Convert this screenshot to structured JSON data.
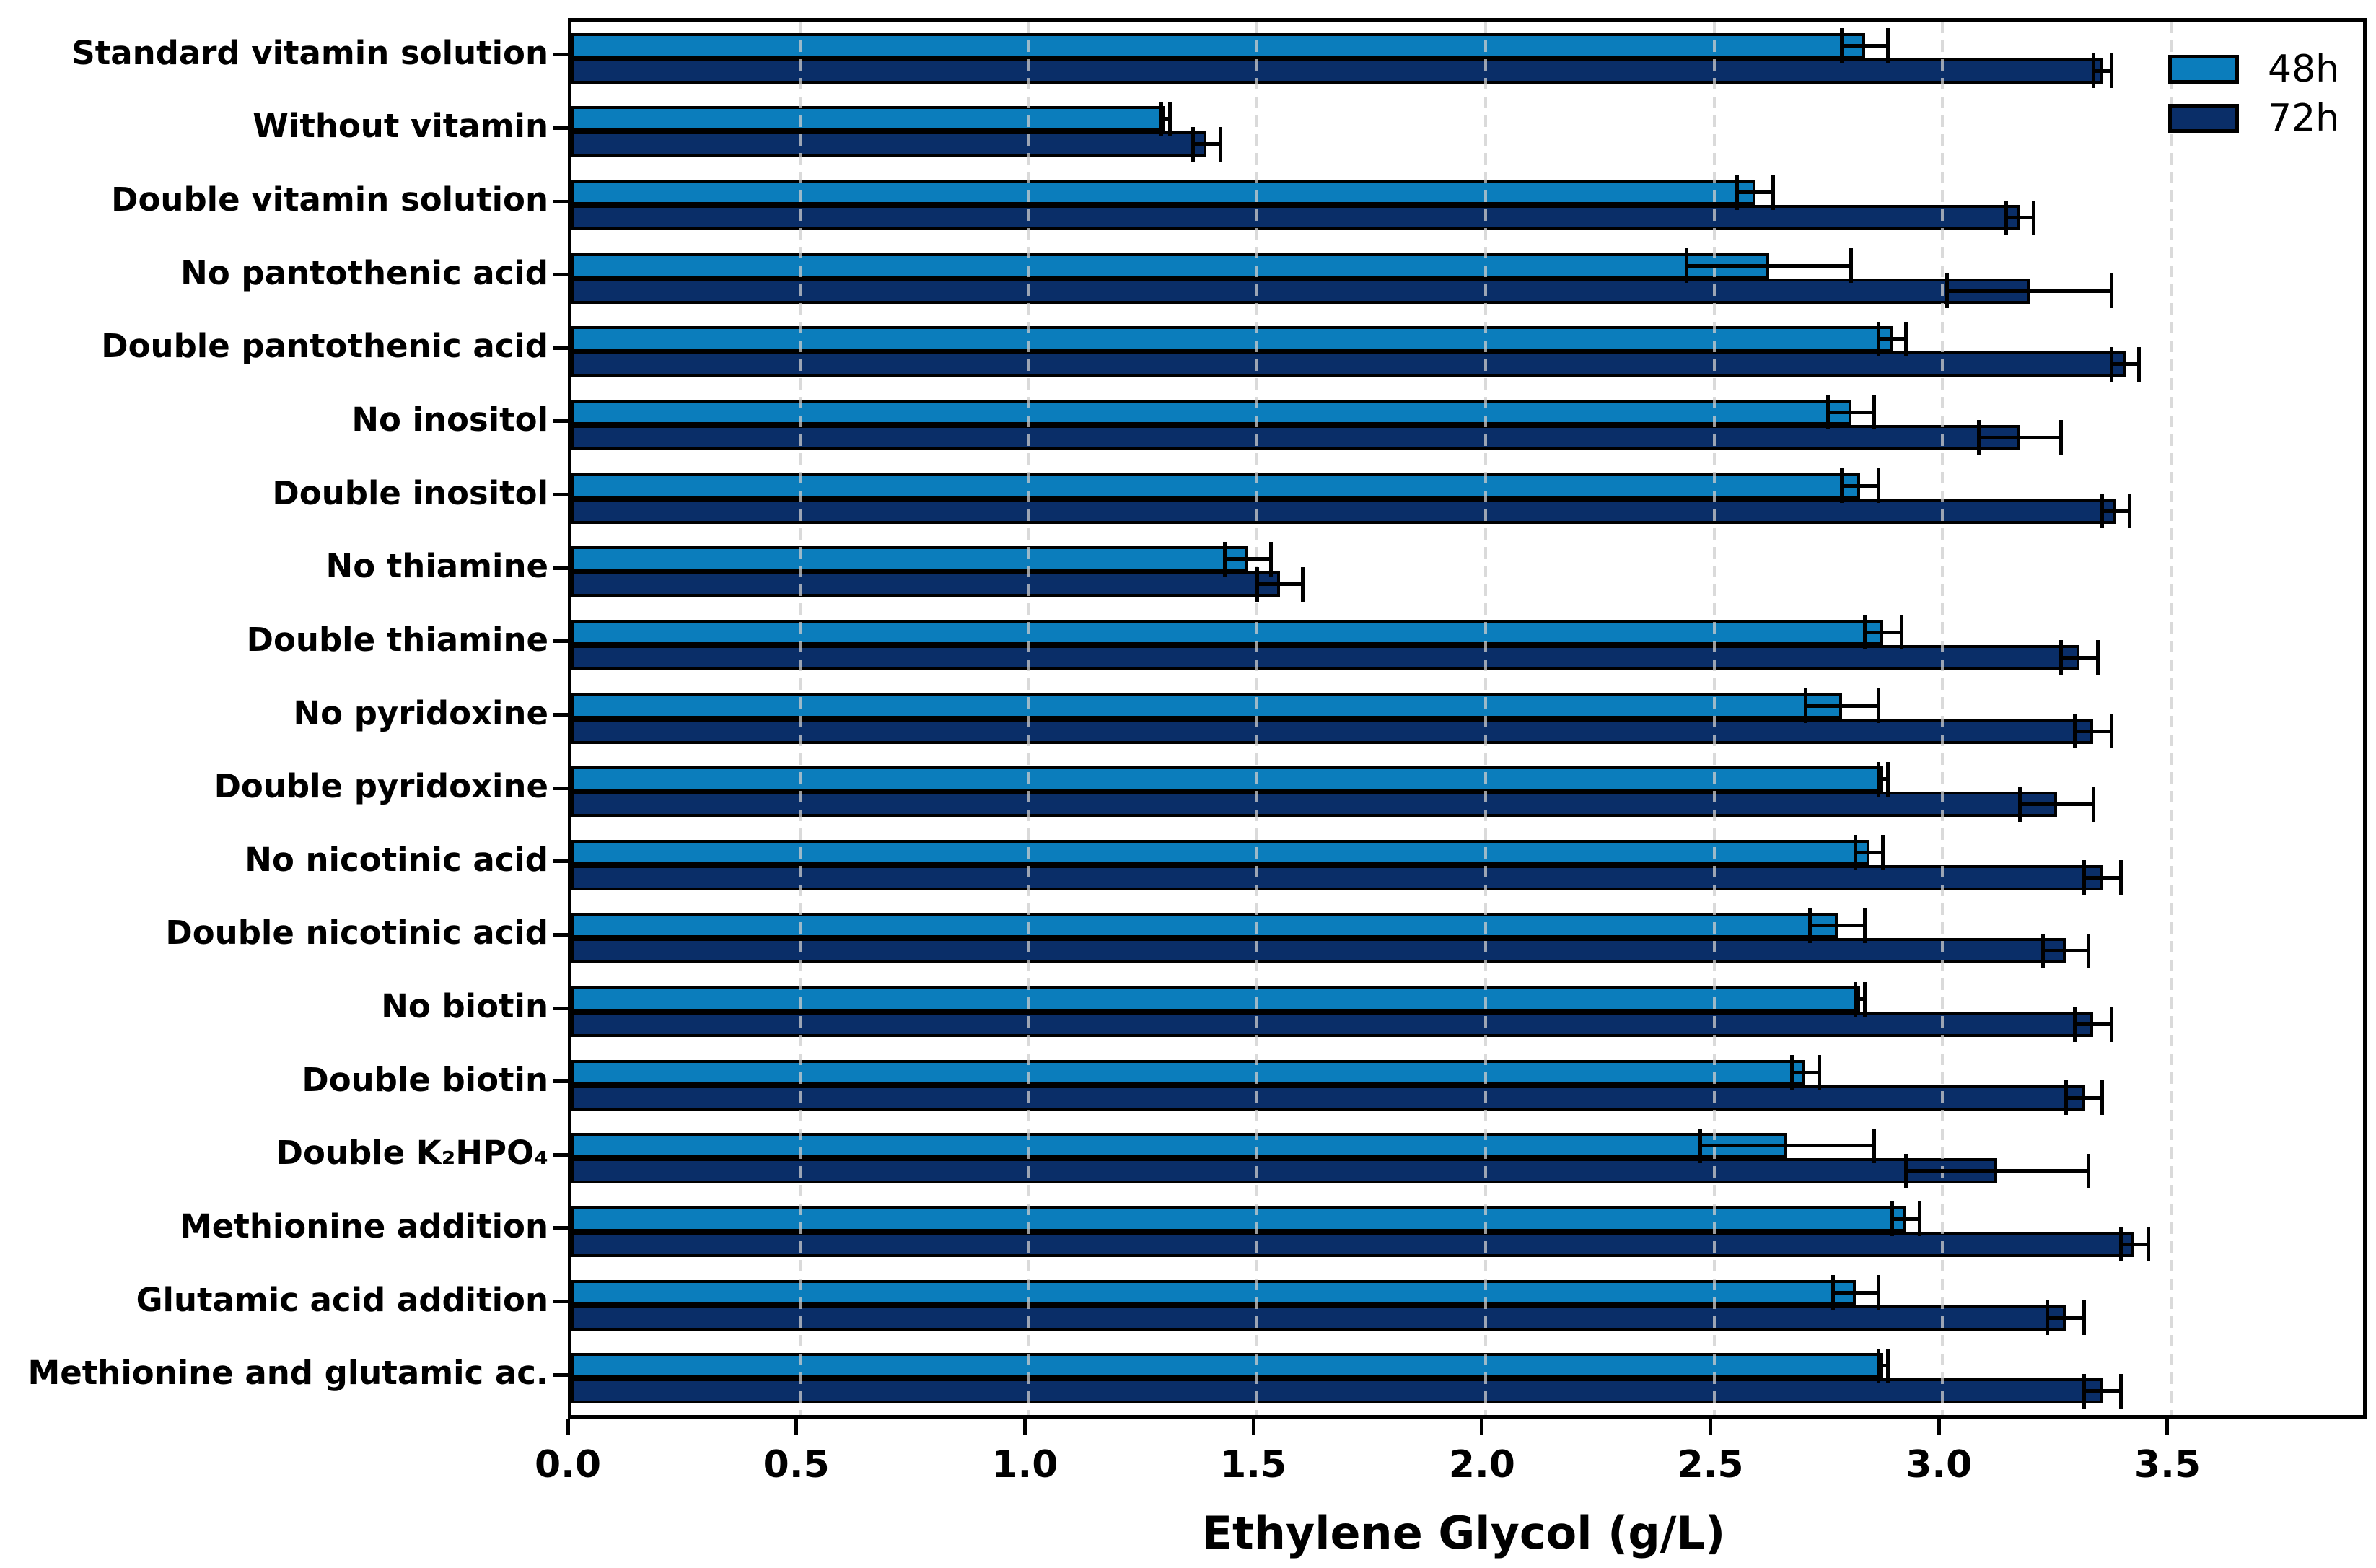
{
  "chart_data": {
    "type": "bar",
    "orientation": "horizontal",
    "title": "",
    "xlabel": "Ethylene Glycol (g/L)",
    "xlim": [
      0,
      3.92
    ],
    "x_ticks": [
      0.0,
      0.5,
      1.0,
      1.5,
      2.0,
      2.5,
      3.0,
      3.5
    ],
    "x_tick_labels": [
      "0.0",
      "0.5",
      "1.0",
      "1.5",
      "2.0",
      "2.5",
      "3.0",
      "3.5"
    ],
    "grid": "vertical dashed gridlines at every 0.5, drawn over bars",
    "legend_position": "upper right inside plot",
    "bar_edge_color": "#000000",
    "error_bar_color": "#000000",
    "categories": [
      "Standard vitamin solution",
      "Without vitamin",
      "Double vitamin solution",
      "No pantothenic acid",
      "Double pantothenic acid",
      "No inositol",
      "Double inositol",
      "No thiamine",
      "Double thiamine",
      "No pyridoxine",
      "Double pyridoxine",
      "No nicotinic acid",
      "Double nicotinic acid",
      "No biotin",
      "Double biotin",
      "Double K₂HPO₄",
      "Methionine addition",
      "Glutamic acid addition",
      "Methionine and glutamic ac."
    ],
    "series": [
      {
        "name": "48h",
        "color": "#0b7dbc",
        "values": [
          2.83,
          1.3,
          2.59,
          2.62,
          2.89,
          2.8,
          2.82,
          1.48,
          2.87,
          2.78,
          2.87,
          2.84,
          2.77,
          2.82,
          2.7,
          2.66,
          2.92,
          2.81,
          2.87
        ],
        "errors": [
          0.05,
          0.01,
          0.04,
          0.18,
          0.03,
          0.05,
          0.04,
          0.05,
          0.04,
          0.08,
          0.01,
          0.03,
          0.06,
          0.01,
          0.03,
          0.19,
          0.03,
          0.05,
          0.01
        ]
      },
      {
        "name": "72h",
        "color": "#0a2e68",
        "values": [
          3.35,
          1.39,
          3.17,
          3.19,
          3.4,
          3.17,
          3.38,
          1.55,
          3.3,
          3.33,
          3.25,
          3.35,
          3.27,
          3.33,
          3.31,
          3.12,
          3.42,
          3.27,
          3.35
        ],
        "errors": [
          0.02,
          0.03,
          0.03,
          0.18,
          0.03,
          0.09,
          0.03,
          0.05,
          0.04,
          0.04,
          0.08,
          0.04,
          0.05,
          0.04,
          0.04,
          0.2,
          0.03,
          0.04,
          0.04
        ]
      }
    ]
  }
}
